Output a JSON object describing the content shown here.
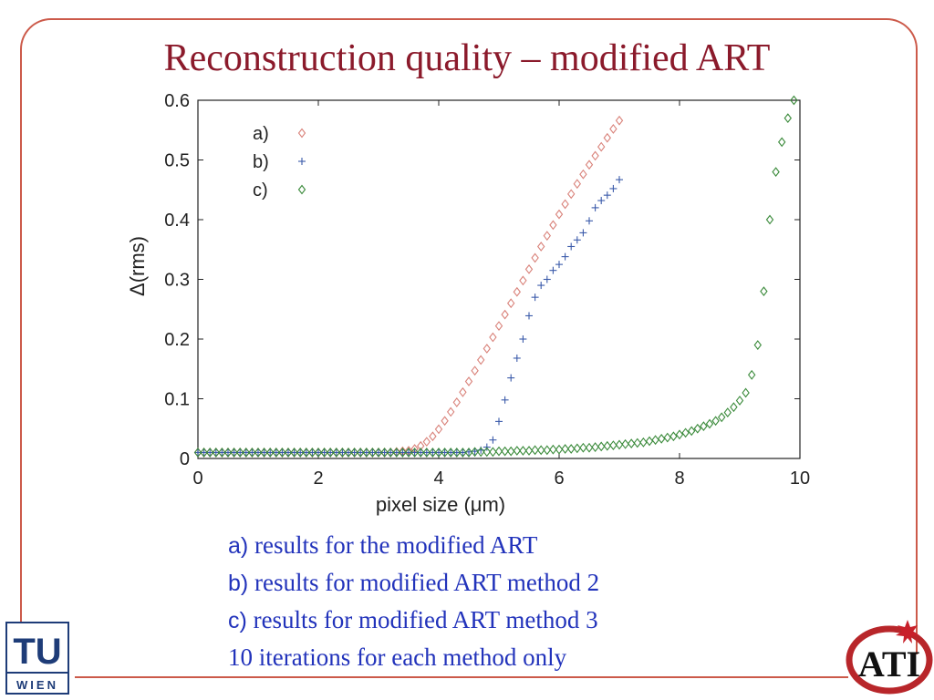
{
  "title": "Reconstruction quality – modified ART",
  "captions": [
    {
      "key": "a)",
      "text": " results for the modified ART"
    },
    {
      "key": "b)",
      "text": " results for modified ART method 2"
    },
    {
      "key": "c)",
      "text": " results for modified ART method 3"
    },
    {
      "key": "",
      "text": "10 iterations for each method only"
    }
  ],
  "logos": {
    "left_top": "TU",
    "left_bottom": "WIEN",
    "right": "ATI"
  },
  "chart_data": {
    "type": "scatter",
    "xlabel": "pixel size (μm)",
    "ylabel": "Δ(rms)",
    "xlim": [
      0,
      10
    ],
    "ylim": [
      0,
      0.6
    ],
    "xticks": [
      "0",
      "2",
      "4",
      "6",
      "8",
      "10"
    ],
    "yticks": [
      "0",
      "0.1",
      "0.2",
      "0.3",
      "0.4",
      "0.5",
      "0.6"
    ],
    "grid": false,
    "legend_position": "top-left",
    "series": [
      {
        "name": "a)",
        "marker": "diamond",
        "color": "#d9827a",
        "points": [
          [
            0,
            0.01
          ],
          [
            0.1,
            0.01
          ],
          [
            0.2,
            0.01
          ],
          [
            0.3,
            0.01
          ],
          [
            0.4,
            0.01
          ],
          [
            0.5,
            0.01
          ],
          [
            0.6,
            0.01
          ],
          [
            0.7,
            0.01
          ],
          [
            0.8,
            0.01
          ],
          [
            0.9,
            0.01
          ],
          [
            1.0,
            0.01
          ],
          [
            1.1,
            0.01
          ],
          [
            1.2,
            0.01
          ],
          [
            1.3,
            0.01
          ],
          [
            1.4,
            0.01
          ],
          [
            1.5,
            0.01
          ],
          [
            1.6,
            0.01
          ],
          [
            1.7,
            0.01
          ],
          [
            1.8,
            0.01
          ],
          [
            1.9,
            0.01
          ],
          [
            2.0,
            0.01
          ],
          [
            2.1,
            0.01
          ],
          [
            2.2,
            0.01
          ],
          [
            2.3,
            0.01
          ],
          [
            2.4,
            0.01
          ],
          [
            2.5,
            0.01
          ],
          [
            2.6,
            0.01
          ],
          [
            2.7,
            0.01
          ],
          [
            2.8,
            0.01
          ],
          [
            2.9,
            0.01
          ],
          [
            3.0,
            0.01
          ],
          [
            3.1,
            0.01
          ],
          [
            3.2,
            0.01
          ],
          [
            3.3,
            0.011
          ],
          [
            3.4,
            0.012
          ],
          [
            3.5,
            0.013
          ],
          [
            3.6,
            0.016
          ],
          [
            3.7,
            0.021
          ],
          [
            3.8,
            0.028
          ],
          [
            3.9,
            0.037
          ],
          [
            4.0,
            0.049
          ],
          [
            4.1,
            0.063
          ],
          [
            4.2,
            0.078
          ],
          [
            4.3,
            0.094
          ],
          [
            4.4,
            0.111
          ],
          [
            4.5,
            0.129
          ],
          [
            4.6,
            0.147
          ],
          [
            4.7,
            0.165
          ],
          [
            4.8,
            0.184
          ],
          [
            4.9,
            0.203
          ],
          [
            5.0,
            0.222
          ],
          [
            5.1,
            0.241
          ],
          [
            5.2,
            0.26
          ],
          [
            5.3,
            0.279
          ],
          [
            5.4,
            0.298
          ],
          [
            5.5,
            0.317
          ],
          [
            5.6,
            0.336
          ],
          [
            5.7,
            0.355
          ],
          [
            5.8,
            0.373
          ],
          [
            5.9,
            0.391
          ],
          [
            6.0,
            0.409
          ],
          [
            6.1,
            0.426
          ],
          [
            6.2,
            0.443
          ],
          [
            6.3,
            0.46
          ],
          [
            6.4,
            0.476
          ],
          [
            6.5,
            0.492
          ],
          [
            6.6,
            0.507
          ],
          [
            6.7,
            0.522
          ],
          [
            6.8,
            0.537
          ],
          [
            6.9,
            0.552
          ],
          [
            7.0,
            0.566
          ]
        ]
      },
      {
        "name": "b)",
        "marker": "plus",
        "color": "#3a5aaa",
        "points": [
          [
            0,
            0.01
          ],
          [
            0.1,
            0.01
          ],
          [
            0.2,
            0.01
          ],
          [
            0.3,
            0.01
          ],
          [
            0.4,
            0.01
          ],
          [
            0.5,
            0.01
          ],
          [
            0.6,
            0.01
          ],
          [
            0.7,
            0.01
          ],
          [
            0.8,
            0.01
          ],
          [
            0.9,
            0.01
          ],
          [
            1.0,
            0.01
          ],
          [
            1.1,
            0.01
          ],
          [
            1.2,
            0.01
          ],
          [
            1.3,
            0.01
          ],
          [
            1.4,
            0.01
          ],
          [
            1.5,
            0.01
          ],
          [
            1.6,
            0.01
          ],
          [
            1.7,
            0.01
          ],
          [
            1.8,
            0.01
          ],
          [
            1.9,
            0.01
          ],
          [
            2.0,
            0.01
          ],
          [
            2.1,
            0.01
          ],
          [
            2.2,
            0.01
          ],
          [
            2.3,
            0.01
          ],
          [
            2.4,
            0.01
          ],
          [
            2.5,
            0.01
          ],
          [
            2.6,
            0.01
          ],
          [
            2.7,
            0.01
          ],
          [
            2.8,
            0.01
          ],
          [
            2.9,
            0.01
          ],
          [
            3.0,
            0.01
          ],
          [
            3.1,
            0.01
          ],
          [
            3.2,
            0.01
          ],
          [
            3.3,
            0.01
          ],
          [
            3.4,
            0.01
          ],
          [
            3.5,
            0.01
          ],
          [
            3.6,
            0.01
          ],
          [
            3.7,
            0.01
          ],
          [
            3.8,
            0.01
          ],
          [
            3.9,
            0.01
          ],
          [
            4.0,
            0.01
          ],
          [
            4.1,
            0.01
          ],
          [
            4.2,
            0.01
          ],
          [
            4.3,
            0.01
          ],
          [
            4.4,
            0.01
          ],
          [
            4.5,
            0.011
          ],
          [
            4.6,
            0.012
          ],
          [
            4.7,
            0.014
          ],
          [
            4.8,
            0.019
          ],
          [
            4.9,
            0.031
          ],
          [
            5.0,
            0.062
          ],
          [
            5.1,
            0.098
          ],
          [
            5.2,
            0.135
          ],
          [
            5.3,
            0.168
          ],
          [
            5.4,
            0.2
          ],
          [
            5.5,
            0.239
          ],
          [
            5.6,
            0.27
          ],
          [
            5.7,
            0.29
          ],
          [
            5.8,
            0.3
          ],
          [
            5.9,
            0.315
          ],
          [
            6.0,
            0.325
          ],
          [
            6.1,
            0.338
          ],
          [
            6.2,
            0.355
          ],
          [
            6.3,
            0.366
          ],
          [
            6.4,
            0.378
          ],
          [
            6.5,
            0.398
          ],
          [
            6.6,
            0.42
          ],
          [
            6.7,
            0.432
          ],
          [
            6.8,
            0.441
          ],
          [
            6.9,
            0.452
          ],
          [
            7.0,
            0.467
          ]
        ]
      },
      {
        "name": "c)",
        "marker": "diamond",
        "color": "#3a8a3a",
        "points": [
          [
            0,
            0.01
          ],
          [
            0.1,
            0.01
          ],
          [
            0.2,
            0.01
          ],
          [
            0.3,
            0.01
          ],
          [
            0.4,
            0.01
          ],
          [
            0.5,
            0.01
          ],
          [
            0.6,
            0.01
          ],
          [
            0.7,
            0.01
          ],
          [
            0.8,
            0.01
          ],
          [
            0.9,
            0.01
          ],
          [
            1.0,
            0.01
          ],
          [
            1.1,
            0.01
          ],
          [
            1.2,
            0.01
          ],
          [
            1.3,
            0.01
          ],
          [
            1.4,
            0.01
          ],
          [
            1.5,
            0.01
          ],
          [
            1.6,
            0.01
          ],
          [
            1.7,
            0.01
          ],
          [
            1.8,
            0.01
          ],
          [
            1.9,
            0.01
          ],
          [
            2.0,
            0.01
          ],
          [
            2.1,
            0.01
          ],
          [
            2.2,
            0.01
          ],
          [
            2.3,
            0.01
          ],
          [
            2.4,
            0.01
          ],
          [
            2.5,
            0.01
          ],
          [
            2.6,
            0.01
          ],
          [
            2.7,
            0.01
          ],
          [
            2.8,
            0.01
          ],
          [
            2.9,
            0.01
          ],
          [
            3.0,
            0.01
          ],
          [
            3.1,
            0.01
          ],
          [
            3.2,
            0.01
          ],
          [
            3.3,
            0.01
          ],
          [
            3.4,
            0.01
          ],
          [
            3.5,
            0.01
          ],
          [
            3.6,
            0.01
          ],
          [
            3.7,
            0.01
          ],
          [
            3.8,
            0.01
          ],
          [
            3.9,
            0.01
          ],
          [
            4.0,
            0.01
          ],
          [
            4.1,
            0.01
          ],
          [
            4.2,
            0.01
          ],
          [
            4.3,
            0.01
          ],
          [
            4.4,
            0.01
          ],
          [
            4.5,
            0.01
          ],
          [
            4.6,
            0.011
          ],
          [
            4.7,
            0.011
          ],
          [
            4.8,
            0.011
          ],
          [
            4.9,
            0.011
          ],
          [
            5.0,
            0.012
          ],
          [
            5.1,
            0.012
          ],
          [
            5.2,
            0.012
          ],
          [
            5.3,
            0.013
          ],
          [
            5.4,
            0.013
          ],
          [
            5.5,
            0.013
          ],
          [
            5.6,
            0.014
          ],
          [
            5.7,
            0.014
          ],
          [
            5.8,
            0.014
          ],
          [
            5.9,
            0.015
          ],
          [
            6.0,
            0.015
          ],
          [
            6.1,
            0.016
          ],
          [
            6.2,
            0.016
          ],
          [
            6.3,
            0.017
          ],
          [
            6.4,
            0.018
          ],
          [
            6.5,
            0.018
          ],
          [
            6.6,
            0.019
          ],
          [
            6.7,
            0.02
          ],
          [
            6.8,
            0.021
          ],
          [
            6.9,
            0.022
          ],
          [
            7.0,
            0.023
          ],
          [
            7.1,
            0.024
          ],
          [
            7.2,
            0.025
          ],
          [
            7.3,
            0.026
          ],
          [
            7.4,
            0.027
          ],
          [
            7.5,
            0.029
          ],
          [
            7.6,
            0.031
          ],
          [
            7.7,
            0.033
          ],
          [
            7.8,
            0.035
          ],
          [
            7.9,
            0.037
          ],
          [
            8.0,
            0.04
          ],
          [
            8.1,
            0.043
          ],
          [
            8.2,
            0.046
          ],
          [
            8.3,
            0.05
          ],
          [
            8.4,
            0.054
          ],
          [
            8.5,
            0.058
          ],
          [
            8.6,
            0.063
          ],
          [
            8.7,
            0.069
          ],
          [
            8.8,
            0.077
          ],
          [
            8.9,
            0.086
          ],
          [
            9.0,
            0.097
          ],
          [
            9.1,
            0.11
          ],
          [
            9.2,
            0.14
          ],
          [
            9.3,
            0.19
          ],
          [
            9.4,
            0.28
          ],
          [
            9.5,
            0.4
          ],
          [
            9.6,
            0.48
          ],
          [
            9.7,
            0.53
          ],
          [
            9.8,
            0.57
          ],
          [
            9.9,
            0.6
          ]
        ]
      }
    ]
  }
}
